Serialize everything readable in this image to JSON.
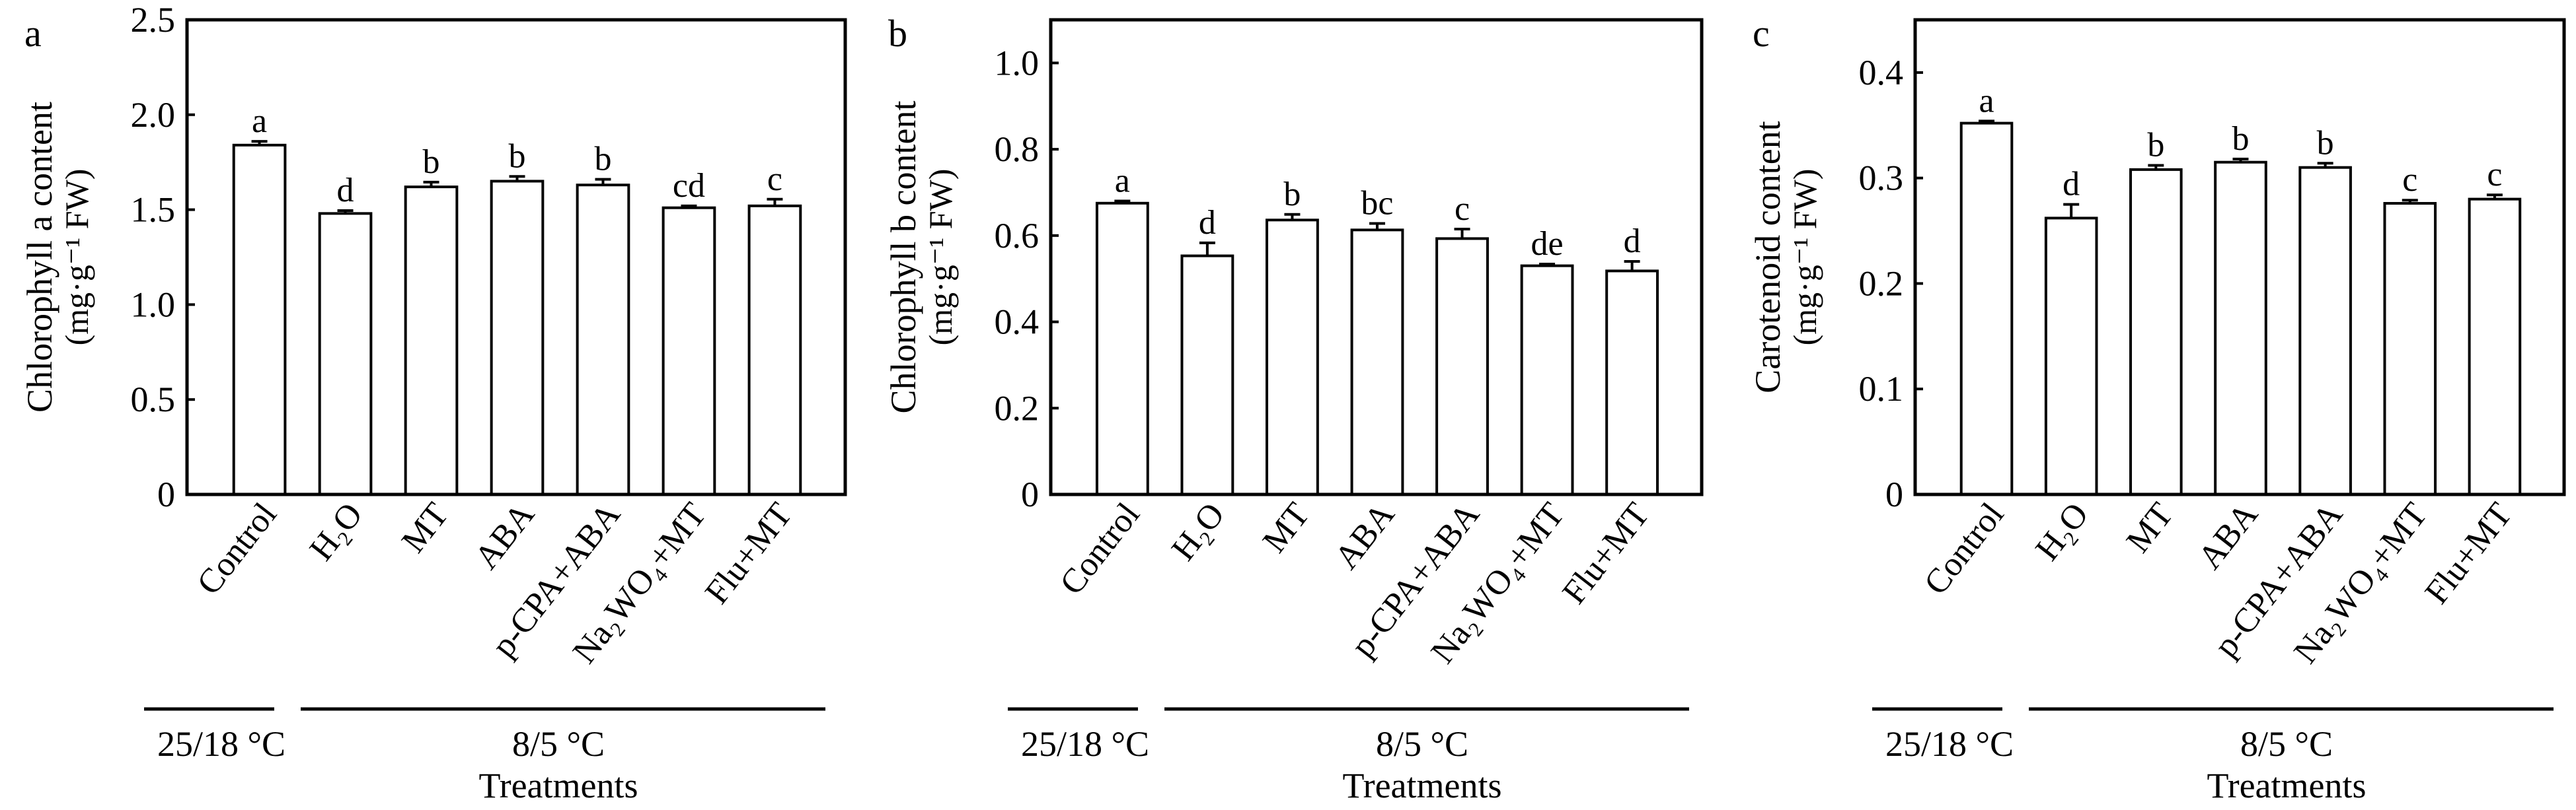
{
  "chart_data": [
    {
      "type": "bar",
      "panel_label": "a",
      "ylabel": "Chlorophyll a content",
      "yunit": "(mg·g⁻¹ FW)",
      "categories": [
        "Control",
        "H₂O",
        "MT",
        "ABA",
        "p-CPA+ABA",
        "Na₂WO₄+MT",
        "Flu+MT"
      ],
      "values": [
        1.84,
        1.48,
        1.62,
        1.65,
        1.63,
        1.51,
        1.52
      ],
      "errors": [
        0.02,
        0.015,
        0.025,
        0.025,
        0.03,
        0.01,
        0.035
      ],
      "letters": [
        "a",
        "d",
        "b",
        "b",
        "b",
        "cd",
        "c"
      ],
      "ylim": [
        0,
        2.5
      ],
      "yticks": [
        "0",
        "0.5",
        "1.0",
        "1.5",
        "2.0",
        "2.5"
      ],
      "ytick_values": [
        0,
        0.5,
        1.0,
        1.5,
        2.0,
        2.5
      ],
      "grid": false
    },
    {
      "type": "bar",
      "panel_label": "b",
      "ylabel": "Chlorophyll b content",
      "yunit": "(mg·g⁻¹ FW)",
      "categories": [
        "Control",
        "H₂O",
        "MT",
        "ABA",
        "p-CPA+ABA",
        "Na₂WO₄+MT",
        "Flu+MT"
      ],
      "values": [
        0.675,
        0.553,
        0.636,
        0.613,
        0.593,
        0.53,
        0.518
      ],
      "errors": [
        0.005,
        0.03,
        0.013,
        0.015,
        0.022,
        0.004,
        0.022
      ],
      "letters": [
        "a",
        "d",
        "b",
        "bc",
        "c",
        "de",
        "d"
      ],
      "ylim": [
        0,
        1.1
      ],
      "yticks": [
        "0",
        "0.2",
        "0.4",
        "0.6",
        "0.8",
        "1.0"
      ],
      "ytick_values": [
        0,
        0.2,
        0.4,
        0.6,
        0.8,
        1.0
      ],
      "grid": false
    },
    {
      "type": "bar",
      "panel_label": "c",
      "ylabel": "Carotenoid content",
      "yunit": "(mg·g⁻¹ FW)",
      "categories": [
        "Control",
        "H₂O",
        "MT",
        "ABA",
        "p-CPA+ABA",
        "Na₂WO₄+MT",
        "Flu+MT"
      ],
      "values": [
        0.352,
        0.262,
        0.308,
        0.315,
        0.31,
        0.276,
        0.28
      ],
      "errors": [
        0.002,
        0.013,
        0.004,
        0.003,
        0.004,
        0.003,
        0.004
      ],
      "letters": [
        "a",
        "d",
        "b",
        "b",
        "b",
        "c",
        "c"
      ],
      "ylim": [
        0,
        0.45
      ],
      "yticks": [
        "0",
        "0.1",
        "0.2",
        "0.3",
        "0.4"
      ],
      "ytick_values": [
        0,
        0.1,
        0.2,
        0.3,
        0.4
      ],
      "grid": false
    }
  ],
  "groups": {
    "control_temp": "25/18 °C",
    "cold_temp": "8/5 °C",
    "xlabel": "Treatments"
  },
  "colors": {
    "bar_fill": "#ffffff",
    "stroke": "#000000"
  }
}
